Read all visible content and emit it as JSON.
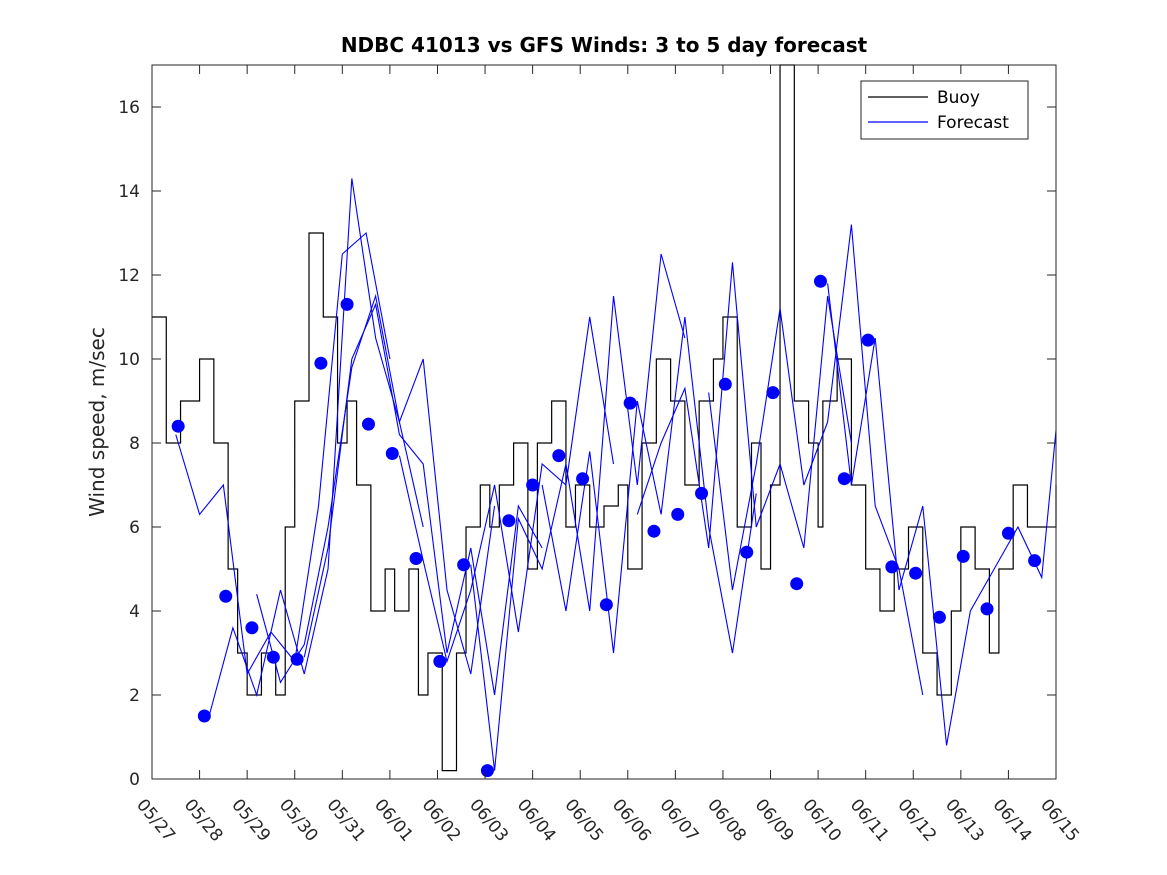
{
  "chart_data": {
    "type": "line",
    "title": "NDBC 41013 vs GFS Winds: 3 to 5 day forecast",
    "xlabel": "",
    "ylabel": "Wind speed, m/sec",
    "xlim": [
      "05/27",
      "06/15"
    ],
    "ylim": [
      0,
      17
    ],
    "x_ticks": [
      "05/27",
      "05/28",
      "05/29",
      "05/30",
      "05/31",
      "06/01",
      "06/02",
      "06/03",
      "06/04",
      "06/05",
      "06/06",
      "06/07",
      "06/08",
      "06/09",
      "06/10",
      "06/11",
      "06/12",
      "06/13",
      "06/14",
      "06/15"
    ],
    "y_ticks": [
      0,
      2,
      4,
      6,
      8,
      10,
      12,
      14,
      16
    ],
    "grid": false,
    "legend": {
      "position": "top-right",
      "entries": [
        "Buoy",
        "Forecast"
      ]
    },
    "colors": {
      "buoy": "#000000",
      "forecast": "#0000ff",
      "markers": "#0000ff"
    },
    "series": [
      {
        "name": "Buoy",
        "style": "step",
        "x_days": [
          0.0,
          0.3,
          0.6,
          1.0,
          1.3,
          1.6,
          1.8,
          2.0,
          2.3,
          2.6,
          2.8,
          3.0,
          3.3,
          3.6,
          3.9,
          4.1,
          4.3,
          4.6,
          4.9,
          5.1,
          5.4,
          5.6,
          5.8,
          6.1,
          6.4,
          6.6,
          6.9,
          7.1,
          7.3,
          7.6,
          7.9,
          8.1,
          8.4,
          8.7,
          8.9,
          9.2,
          9.5,
          9.8,
          10.0,
          10.3,
          10.6,
          10.9,
          11.2,
          11.5,
          11.8,
          12.0,
          12.3,
          12.6,
          12.8,
          13.0,
          13.2,
          13.5,
          13.8,
          14.0,
          14.1,
          14.4,
          14.7,
          15.0,
          15.3,
          15.6,
          15.9,
          16.2,
          16.5,
          16.8,
          17.0,
          17.3,
          17.6,
          17.8,
          18.1,
          18.4,
          18.7,
          19.0
        ],
        "values": [
          11,
          8,
          9,
          10,
          8,
          5,
          3,
          2,
          3,
          2,
          6,
          9,
          13,
          11,
          8,
          9,
          7,
          4,
          5,
          4,
          5,
          2,
          3,
          0.2,
          3,
          6,
          7,
          6,
          7,
          8,
          5,
          8,
          9,
          6,
          7,
          6,
          6.5,
          7,
          5,
          8,
          10,
          9,
          7,
          9,
          10,
          11,
          6,
          8,
          5,
          7,
          17,
          9,
          8,
          6,
          9,
          10,
          7,
          5,
          4,
          5,
          6,
          3,
          2,
          4,
          6,
          5,
          3,
          5,
          7,
          6,
          6,
          7
        ]
      },
      {
        "name": "Forecast",
        "style": "line",
        "runs": [
          {
            "x_days": [
              0.5,
              1.0,
              1.5,
              2.0,
              2.5,
              3.0,
              3.5,
              4.0,
              4.5,
              5.0
            ],
            "values": [
              8.2,
              6.3,
              7.0,
              2.5,
              3.5,
              2.8,
              6.5,
              12.5,
              13.0,
              10.0
            ]
          },
          {
            "x_days": [
              1.2,
              1.7,
              2.2,
              2.7,
              3.2,
              3.7,
              4.2,
              4.7,
              5.2,
              5.7
            ],
            "values": [
              1.5,
              3.6,
              2.0,
              4.5,
              2.5,
              5.0,
              14.3,
              10.5,
              8.5,
              6.0
            ]
          },
          {
            "x_days": [
              2.2,
              2.7,
              3.2,
              3.7,
              4.2,
              4.7,
              5.2,
              5.7,
              6.2,
              6.7,
              7.2
            ],
            "values": [
              4.4,
              2.3,
              3.2,
              6.0,
              9.8,
              11.5,
              8.5,
              10.0,
              4.5,
              2.5,
              6.5
            ]
          },
          {
            "x_days": [
              3.2,
              3.7,
              4.2,
              4.7,
              5.2,
              5.7,
              6.2,
              6.7,
              7.2,
              7.7,
              8.2
            ],
            "values": [
              2.9,
              5.5,
              10.0,
              11.3,
              8.2,
              7.5,
              3.0,
              5.5,
              2.0,
              6.5,
              5.5
            ]
          },
          {
            "x_days": [
              5.2,
              5.7,
              6.2,
              6.7,
              7.2,
              7.7,
              8.2,
              8.7,
              9.2,
              9.7
            ],
            "values": [
              7.7,
              5.2,
              2.8,
              4.5,
              7.0,
              3.5,
              7.5,
              7.0,
              11.0,
              7.5
            ]
          },
          {
            "x_days": [
              6.7,
              7.2,
              7.7,
              8.2,
              8.7,
              9.2,
              9.7,
              10.2,
              10.7,
              11.2
            ],
            "values": [
              5.1,
              0.2,
              6.2,
              5.0,
              7.5,
              4.0,
              11.5,
              7.0,
              12.5,
              10.5
            ]
          },
          {
            "x_days": [
              8.2,
              8.7,
              9.2,
              9.7,
              10.2,
              10.7,
              11.2,
              11.7,
              12.2,
              12.7
            ],
            "values": [
              7.0,
              4.0,
              7.8,
              3.0,
              9.0,
              6.3,
              11.0,
              6.0,
              3.0,
              6.8
            ]
          },
          {
            "x_days": [
              10.2,
              10.7,
              11.2,
              11.7,
              12.2,
              12.7,
              13.2,
              13.7,
              14.2,
              14.7
            ],
            "values": [
              6.3,
              8.0,
              9.3,
              5.5,
              12.3,
              6.0,
              7.5,
              5.5,
              11.5,
              8.0
            ]
          },
          {
            "x_days": [
              11.7,
              12.2,
              12.7,
              13.2,
              13.7,
              14.2,
              14.7,
              15.2,
              15.7,
              16.2
            ],
            "values": [
              9.2,
              4.5,
              7.5,
              11.2,
              7.0,
              8.5,
              13.2,
              6.5,
              5.0,
              2.0
            ]
          },
          {
            "x_days": [
              14.2,
              14.7,
              15.2,
              15.7,
              16.2,
              16.7,
              17.2,
              17.7,
              18.2,
              18.7,
              19.0
            ],
            "values": [
              11.8,
              7.0,
              10.5,
              4.5,
              6.5,
              0.8,
              4.0,
              5.0,
              6.0,
              4.8,
              8.3
            ]
          }
        ]
      },
      {
        "name": "",
        "style": "markers",
        "x_days": [
          0.55,
          1.1,
          1.55,
          2.1,
          2.55,
          3.05,
          3.55,
          4.1,
          4.55,
          5.05,
          5.55,
          6.05,
          6.55,
          7.05,
          7.5,
          8.0,
          8.55,
          9.05,
          9.55,
          10.05,
          10.55,
          11.05,
          11.55,
          12.05,
          12.5,
          13.05,
          13.55,
          14.05,
          14.55,
          15.05,
          15.55,
          16.05,
          16.55,
          17.05,
          17.55,
          18.0,
          18.55
        ],
        "values": [
          8.4,
          1.5,
          4.35,
          3.6,
          2.9,
          2.85,
          9.9,
          11.3,
          8.45,
          7.75,
          5.25,
          2.8,
          5.1,
          0.2,
          6.15,
          7.0,
          7.7,
          7.15,
          4.15,
          8.95,
          5.9,
          6.3,
          6.8,
          9.4,
          5.4,
          9.2,
          4.65,
          11.85,
          7.15,
          10.45,
          5.05,
          4.9,
          3.85,
          5.3,
          4.05,
          5.85,
          5.2
        ]
      }
    ]
  }
}
